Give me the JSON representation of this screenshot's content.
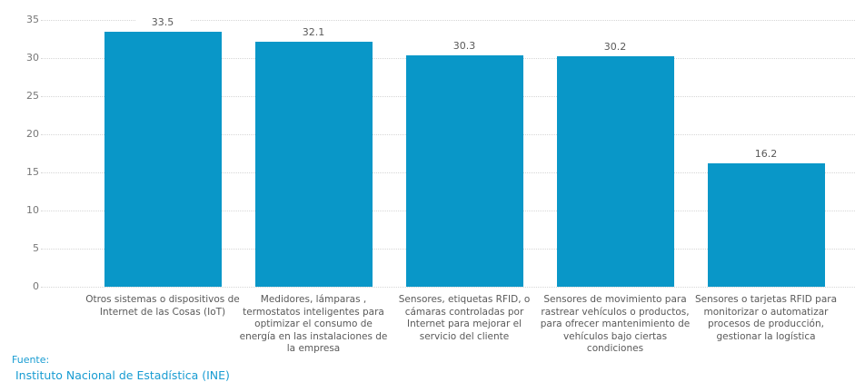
{
  "chart_data": {
    "type": "bar",
    "categories": [
      "Otros sistemas o dispositivos de\nInternet de las Cosas (IoT)",
      "Medidores, lámparas ,\ntermostatos inteligentes para\noptimizar el consumo de\nenergía en las instalaciones de\nla empresa",
      "Sensores, etiquetas RFID, o\ncámaras controladas por\nInternet para mejorar el\nservicio del cliente",
      "Sensores de movimiento para\nrastrear vehículos o productos,\npara ofrecer mantenimiento de\nvehículos bajo ciertas\ncondiciones",
      "Sensores o tarjetas RFID para\nmonitorizar o automatizar\nprocesos de producción,\ngestionar la logística"
    ],
    "values": [
      33.5,
      32.1,
      30.3,
      30.2,
      16.2
    ],
    "value_labels": [
      "33.5",
      "32.1",
      "30.3",
      "30.2",
      "16.2"
    ],
    "title": "",
    "xlabel": "",
    "ylabel": "",
    "ylim": [
      0,
      35
    ],
    "yticks": [
      0,
      5,
      10,
      15,
      20,
      25,
      30,
      35
    ],
    "grid": "horizontal-dotted",
    "legend_position": "none",
    "bar_color": "#0997c8"
  },
  "footer": {
    "source_label": "Fuente:",
    "source_name": "Instituto Nacional de Estadística (INE)"
  },
  "colors": {
    "bar": "#0997c8",
    "gridline": "#d6d6d6",
    "tick_text": "#777777",
    "label_text": "#595959",
    "source_text": "#189cd2"
  }
}
